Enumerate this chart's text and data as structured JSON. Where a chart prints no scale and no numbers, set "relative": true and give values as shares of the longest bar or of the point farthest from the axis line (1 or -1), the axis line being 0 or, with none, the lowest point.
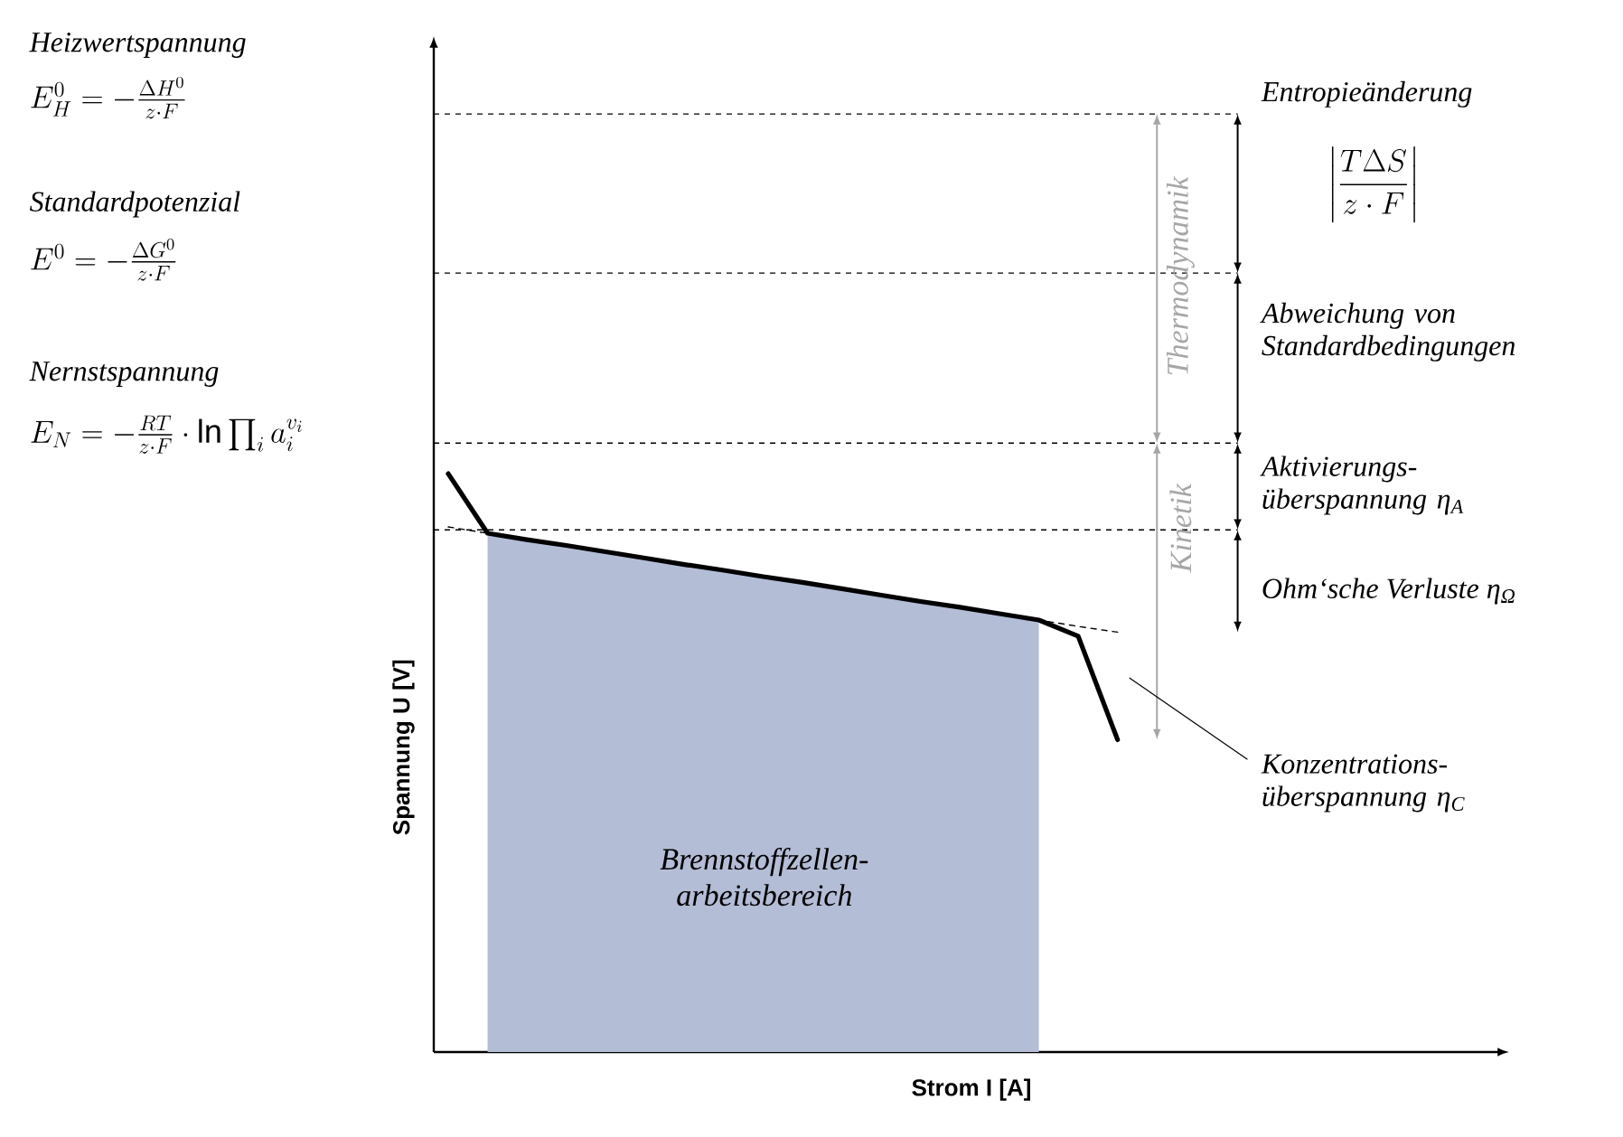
{
  "chart_data": {
    "type": "line",
    "relative": true,
    "xlabel": "Strom I  [A]",
    "ylabel": "Spannung U [V]",
    "categories": [
      null,
      null,
      null,
      null,
      null,
      null,
      null,
      null,
      null,
      null,
      null,
      null,
      null,
      null,
      null,
      null,
      null,
      null
    ],
    "series": [
      {
        "type": "area",
        "color": "#b4bdd6",
        "values": [
          null,
          0.897,
          0.886,
          0.876,
          0.865,
          0.854,
          0.843,
          0.833,
          0.822,
          0.812,
          0.801,
          0.79,
          0.779,
          0.769,
          0.758,
          0.747,
          null,
          null
        ]
      },
      {
        "color": "#000000",
        "values": [
          1,
          0.897,
          0.886,
          0.876,
          0.865,
          0.854,
          0.843,
          0.833,
          0.822,
          0.812,
          0.801,
          0.79,
          0.779,
          0.769,
          0.758,
          0.747,
          0.719,
          0.54
        ]
      },
      {
        "type": "line",
        "line_style": "dashed",
        "color": "#000000",
        "values": [
          0.908,
          0.897,
          0.886,
          0.876,
          0.865,
          0.854,
          0.844,
          0.833,
          0.822,
          0.811,
          0.801,
          0.79,
          0.779,
          0.769,
          0.758,
          0.747,
          0.736,
          0.726
        ]
      }
    ],
    "ref_lines": [
      {
        "axis": "y",
        "value": 1.622,
        "line_style": "dashed"
      },
      {
        "axis": "y",
        "value": 1.347,
        "line_style": "dashed"
      },
      {
        "axis": "y",
        "value": 1.053,
        "line_style": "dashed"
      },
      {
        "axis": "y",
        "value": 0.903,
        "line_style": "dashed"
      }
    ],
    "annotations": [
      "Heizwertspannung",
      "E_H^0 = -\\frac{\\Delta H^0}{z\\cdot F}",
      "Standardpotenzial",
      "E^0 = -\\frac{\\Delta G^0}{z\\cdot F}",
      "Nernstspannung",
      "E_N = -\\frac{RT}{z\\cdot F}\\cdot \\ln \\prod_i a_i^{v_i}",
      "Entropieänderung",
      "\\left|\\frac{T\\Delta S}{z\\cdot F}\\right|",
      "Abweichung von Standardbedingungen",
      "Aktivierungs- überspannung η$_{A}$",
      "Ohm‘sche Verluste η$_{Ω}$",
      "Konzentrations- überspannung η$_{C}$",
      "Thermodynamik",
      "Kinetik",
      "Brennstoffzellen- arbeitsbereich"
    ]
  }
}
